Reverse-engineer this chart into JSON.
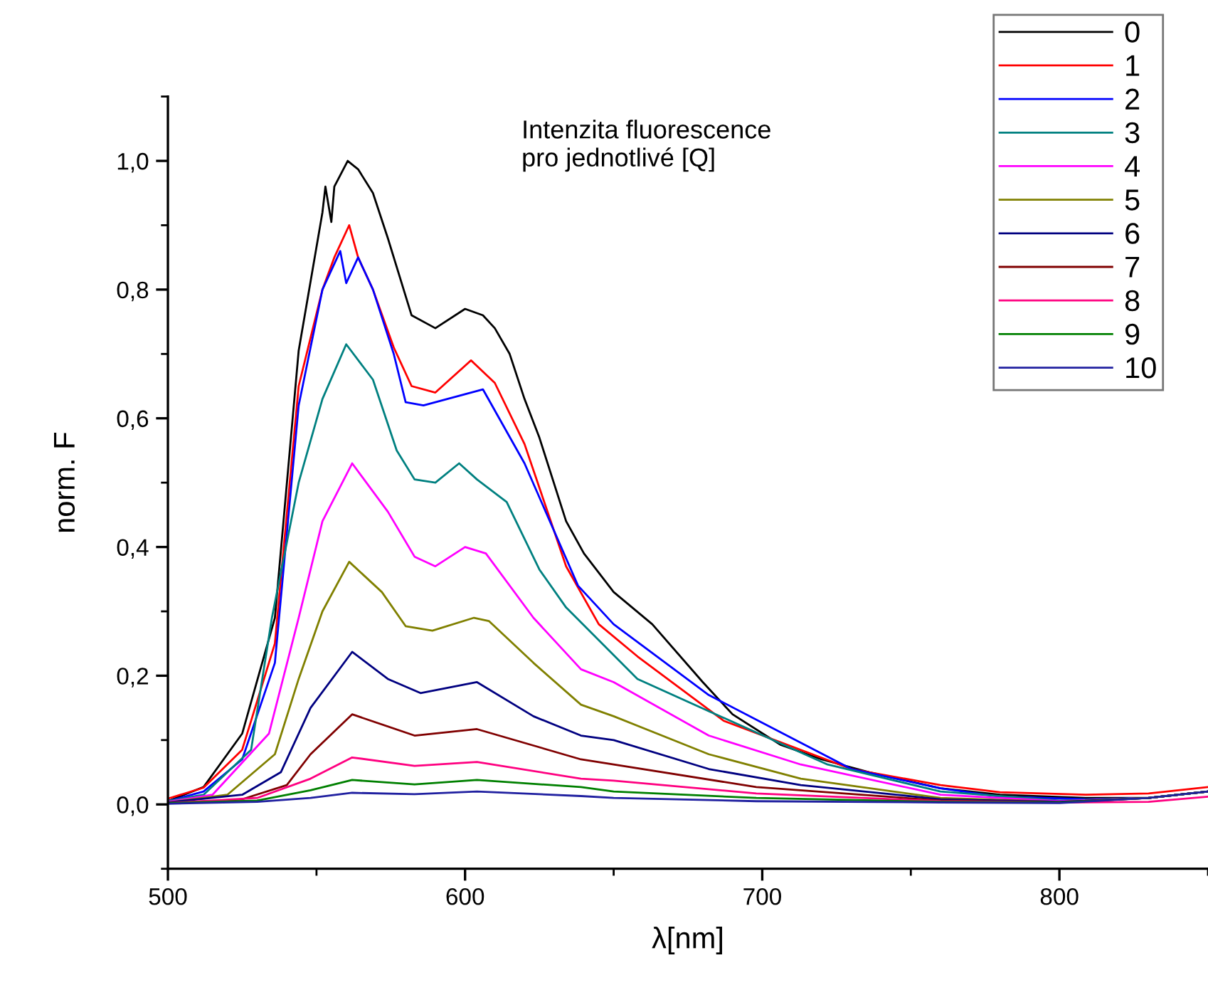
{
  "chart_data": {
    "type": "line",
    "xlabel": "λ[nm]",
    "ylabel": "norm. F",
    "annotations": [
      "Intenzita fluorescence\npro jednotlivé [Q]"
    ],
    "xlim": [
      500,
      850
    ],
    "xticks": [
      500,
      600,
      700,
      800
    ],
    "ylim": [
      -0.1,
      1.1
    ],
    "yticks": [
      {
        "value": 0.0,
        "label": "0,0"
      },
      {
        "value": 0.2,
        "label": "0,2"
      },
      {
        "value": 0.4,
        "label": "0,4"
      },
      {
        "value": 0.6,
        "label": "0,6"
      },
      {
        "value": 0.8,
        "label": "0,8"
      },
      {
        "value": 1.0,
        "label": "1,0"
      }
    ],
    "grid": false,
    "legend": "top right",
    "marker": "none",
    "line_style": "solid",
    "series": [
      {
        "name": "0",
        "color": "#000000",
        "x": [
          500,
          512,
          525,
          536,
          544,
          552,
          553,
          555,
          556,
          560.5,
          564,
          569,
          574,
          582,
          590,
          600,
          606,
          610,
          615,
          620,
          625,
          634,
          640,
          650,
          663,
          680,
          690,
          706,
          720,
          736,
          760,
          780,
          809,
          830,
          850
        ],
        "values": [
          0.005,
          0.027,
          0.11,
          0.29,
          0.705,
          0.92,
          0.96,
          0.905,
          0.96,
          1.0,
          0.987,
          0.95,
          0.88,
          0.76,
          0.74,
          0.77,
          0.76,
          0.74,
          0.7,
          0.63,
          0.57,
          0.44,
          0.39,
          0.33,
          0.28,
          0.19,
          0.14,
          0.093,
          0.07,
          0.05,
          0.025,
          0.015,
          0.01,
          0.01,
          0.02
        ]
      },
      {
        "name": "1",
        "color": "#ff0000",
        "x": [
          500,
          512,
          525,
          536,
          544,
          552,
          556,
          561,
          564,
          569,
          576,
          582,
          590,
          602,
          610,
          620,
          634,
          645,
          658,
          687,
          730,
          760,
          780,
          809,
          830,
          850
        ],
        "values": [
          0.009,
          0.026,
          0.085,
          0.25,
          0.65,
          0.8,
          0.85,
          0.9,
          0.85,
          0.8,
          0.71,
          0.65,
          0.64,
          0.69,
          0.655,
          0.56,
          0.37,
          0.28,
          0.23,
          0.13,
          0.055,
          0.03,
          0.019,
          0.015,
          0.017,
          0.027
        ]
      },
      {
        "name": "2",
        "color": "#0000ff",
        "x": [
          500,
          512,
          525,
          536,
          544,
          552,
          558,
          560,
          564,
          569,
          576,
          580,
          586,
          606,
          620,
          638,
          650,
          682,
          730,
          760,
          780,
          809,
          830,
          850
        ],
        "values": [
          0.005,
          0.02,
          0.07,
          0.22,
          0.62,
          0.8,
          0.86,
          0.81,
          0.85,
          0.8,
          0.7,
          0.625,
          0.62,
          0.645,
          0.53,
          0.34,
          0.28,
          0.17,
          0.055,
          0.025,
          0.012,
          0.008,
          0.01,
          0.02
        ]
      },
      {
        "name": "3",
        "color": "#008080",
        "x": [
          500,
          512,
          528,
          535,
          544,
          552,
          560,
          569,
          577,
          583,
          590,
          598,
          604,
          614,
          625,
          634,
          658,
          682,
          722,
          760,
          800,
          830,
          850
        ],
        "values": [
          0.005,
          0.015,
          0.085,
          0.29,
          0.5,
          0.63,
          0.715,
          0.66,
          0.55,
          0.505,
          0.5,
          0.53,
          0.505,
          0.47,
          0.365,
          0.306,
          0.195,
          0.145,
          0.062,
          0.02,
          0.006,
          0.01,
          0.02
        ]
      },
      {
        "name": "4",
        "color": "#ff00ff",
        "x": [
          500,
          515,
          534,
          544,
          552,
          562,
          574,
          583,
          590,
          600,
          607,
          623,
          639,
          650,
          682,
          713,
          760,
          800,
          830,
          850
        ],
        "values": [
          0.004,
          0.015,
          0.11,
          0.29,
          0.44,
          0.53,
          0.455,
          0.385,
          0.37,
          0.4,
          0.39,
          0.29,
          0.21,
          0.19,
          0.107,
          0.062,
          0.015,
          0.005,
          0.01,
          0.02
        ]
      },
      {
        "name": "5",
        "color": "#808000",
        "x": [
          500,
          520,
          536,
          544,
          552,
          561,
          572,
          580,
          589,
          603,
          608,
          623,
          639,
          650,
          682,
          713,
          760,
          800,
          830,
          850
        ],
        "values": [
          0.003,
          0.015,
          0.078,
          0.195,
          0.3,
          0.377,
          0.33,
          0.277,
          0.27,
          0.29,
          0.285,
          0.22,
          0.155,
          0.137,
          0.078,
          0.04,
          0.01,
          0.004,
          0.01,
          0.02
        ]
      },
      {
        "name": "6",
        "color": "#000080",
        "x": [
          500,
          525,
          538,
          548,
          562,
          574,
          585,
          604,
          623,
          639,
          650,
          682,
          713,
          760,
          800,
          830,
          850
        ],
        "values": [
          0.003,
          0.015,
          0.05,
          0.15,
          0.237,
          0.195,
          0.173,
          0.19,
          0.137,
          0.107,
          0.1,
          0.055,
          0.03,
          0.008,
          0.004,
          0.01,
          0.02
        ]
      },
      {
        "name": "7",
        "color": "#800000",
        "x": [
          500,
          525,
          540,
          548,
          562,
          583,
          604,
          639,
          650,
          698,
          760,
          800,
          830,
          850
        ],
        "values": [
          0.002,
          0.008,
          0.03,
          0.078,
          0.14,
          0.107,
          0.117,
          0.07,
          0.062,
          0.027,
          0.006,
          0.003,
          0.01,
          0.02
        ]
      },
      {
        "name": "8",
        "color": "#ff0080",
        "x": [
          500,
          530,
          548,
          562,
          583,
          604,
          639,
          650,
          698,
          760,
          800,
          830,
          850
        ],
        "values": [
          0.002,
          0.01,
          0.04,
          0.073,
          0.06,
          0.066,
          0.04,
          0.037,
          0.017,
          0.005,
          0.003,
          0.004,
          0.012
        ]
      },
      {
        "name": "9",
        "color": "#008000",
        "x": [
          500,
          530,
          548,
          562,
          583,
          604,
          639,
          650,
          698,
          760,
          800,
          830,
          850
        ],
        "values": [
          0.002,
          0.006,
          0.022,
          0.038,
          0.031,
          0.038,
          0.027,
          0.02,
          0.01,
          0.004,
          0.003,
          0.01,
          0.02
        ]
      },
      {
        "name": "10",
        "color": "#2020a0",
        "x": [
          500,
          530,
          548,
          562,
          583,
          604,
          639,
          650,
          698,
          760,
          800,
          830,
          850
        ],
        "values": [
          0.001,
          0.004,
          0.01,
          0.018,
          0.016,
          0.02,
          0.013,
          0.01,
          0.005,
          0.003,
          0.002,
          0.01,
          0.02
        ]
      }
    ]
  }
}
